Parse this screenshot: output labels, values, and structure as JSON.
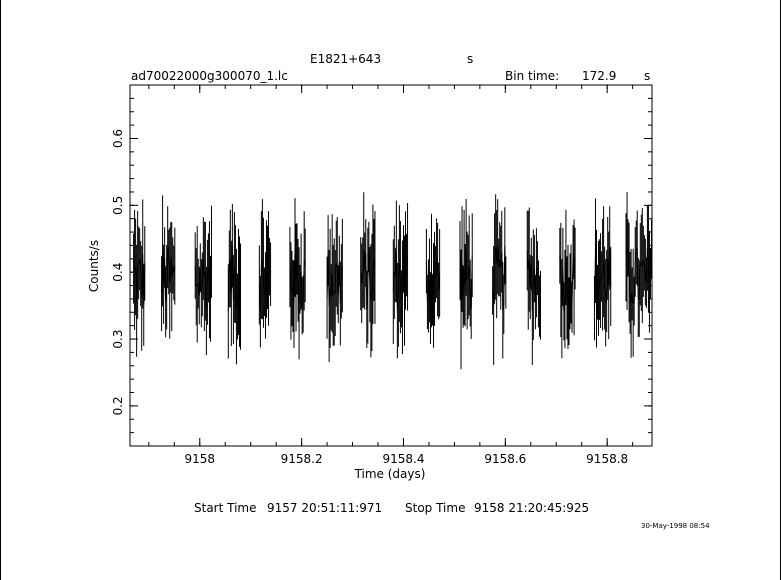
{
  "chart_data": {
    "type": "line",
    "title": "E1821+643",
    "title_unit": "s",
    "filename": "ad70022000g300070_1.lc",
    "bin_time_label": "Bin time:",
    "bin_time_value": "172.9",
    "bin_time_unit": "s",
    "xlabel": "Time (days)",
    "ylabel": "Counts/s",
    "xlim": [
      9157.863,
      9158.888
    ],
    "ylim": [
      0.14,
      0.68
    ],
    "x_ticks": [
      9158,
      9158.2,
      9158.4,
      9158.6,
      9158.8
    ],
    "x_tick_labels": [
      "9158",
      "9158.2",
      "9158.4",
      "9158.6",
      "9158.8"
    ],
    "y_ticks": [
      0.2,
      0.3,
      0.4,
      0.5,
      0.6
    ],
    "y_tick_labels": [
      "0.2",
      "0.3",
      "0.4",
      "0.5",
      "0.6"
    ],
    "grid": false,
    "series": [
      {
        "segments": [
          [
            9157.87,
            9157.894
          ],
          [
            9157.925,
            9157.953
          ],
          [
            9157.991,
            9158.025
          ],
          [
            9158.056,
            9158.081
          ],
          [
            9158.117,
            9158.141
          ],
          [
            9158.177,
            9158.208
          ],
          [
            9158.25,
            9158.282
          ],
          [
            9158.316,
            9158.346
          ],
          [
            9158.38,
            9158.41
          ],
          [
            9158.445,
            9158.472
          ],
          [
            9158.511,
            9158.537
          ],
          [
            9158.575,
            9158.603
          ],
          [
            9158.643,
            9158.67
          ],
          [
            9158.707,
            9158.738
          ],
          [
            9158.775,
            9158.808
          ],
          [
            9158.837,
            9158.888
          ]
        ],
        "mean_rate": 0.39,
        "typical_error": 0.06
      }
    ]
  },
  "footer": {
    "start_label": "Start Time",
    "start_value": "9157 20:51:11:971",
    "stop_label": "Stop Time",
    "stop_value": "9158 21:20:45:925",
    "date_stamp": "30-May-1998 08:54"
  }
}
